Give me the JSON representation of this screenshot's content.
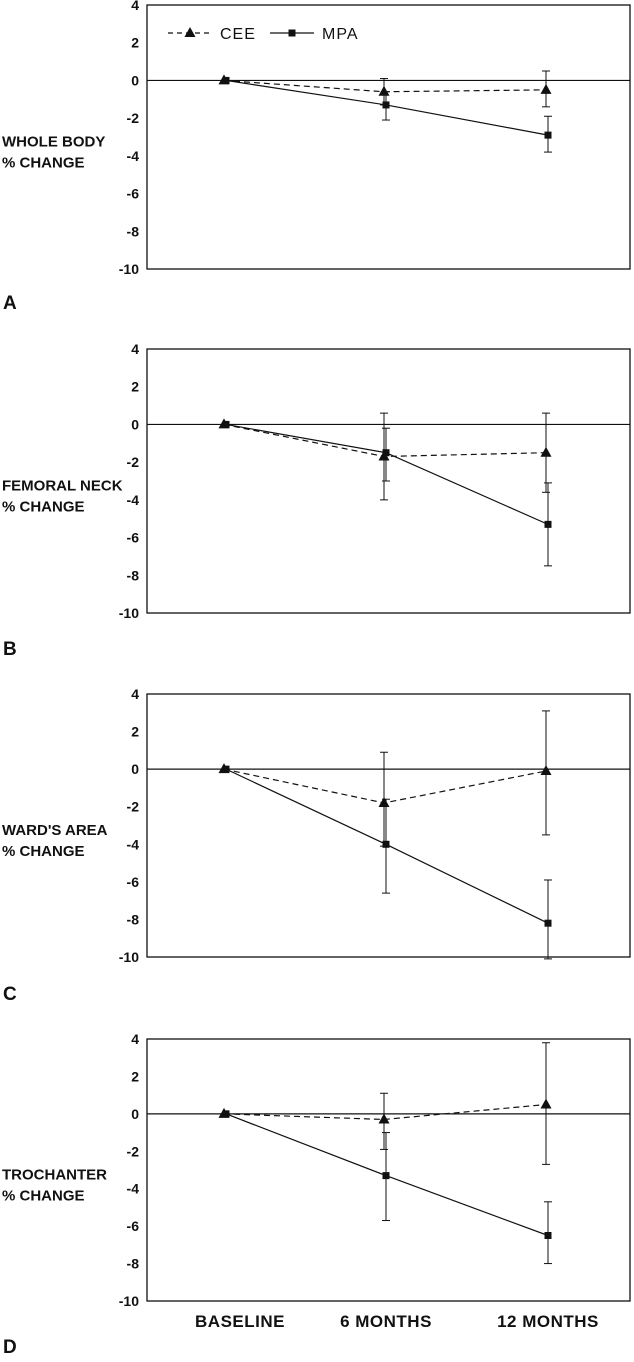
{
  "chart_data": [
    {
      "panel": "A",
      "type": "line",
      "ylabel": [
        "WHOLE BODY",
        "% CHANGE"
      ],
      "ylim": [
        -10,
        4
      ],
      "yticks": [
        4,
        2,
        0,
        -2,
        -4,
        -6,
        -8,
        -10
      ],
      "x": [
        "BASELINE",
        "6 MONTHS",
        "12 MONTHS"
      ],
      "legend": {
        "placement": "top-left",
        "entries": [
          "CEE",
          "MPA"
        ]
      },
      "series": [
        {
          "name": "CEE",
          "marker": "triangle",
          "line": "dashed",
          "values": [
            0,
            -0.6,
            -0.5
          ],
          "err_low": [
            null,
            -1.3,
            -1.4
          ],
          "err_high": [
            null,
            0.1,
            0.5
          ]
        },
        {
          "name": "MPA",
          "marker": "square",
          "line": "solid",
          "values": [
            0,
            -1.3,
            -2.9
          ],
          "err_low": [
            null,
            -2.1,
            -3.8
          ],
          "err_high": [
            null,
            -0.6,
            -1.9
          ]
        }
      ]
    },
    {
      "panel": "B",
      "type": "line",
      "ylabel": [
        "FEMORAL NECK",
        "% CHANGE"
      ],
      "ylim": [
        -10,
        4
      ],
      "yticks": [
        4,
        2,
        0,
        -2,
        -4,
        -6,
        -8,
        -10
      ],
      "x": [
        "BASELINE",
        "6 MONTHS",
        "12 MONTHS"
      ],
      "series": [
        {
          "name": "CEE",
          "marker": "triangle",
          "line": "dashed",
          "values": [
            0,
            -1.7,
            -1.5
          ],
          "err_low": [
            null,
            -4.0,
            -3.6
          ],
          "err_high": [
            null,
            0.6,
            0.6
          ]
        },
        {
          "name": "MPA",
          "marker": "square",
          "line": "solid",
          "values": [
            0,
            -1.5,
            -5.3
          ],
          "err_low": [
            null,
            -3.0,
            -7.5
          ],
          "err_high": [
            null,
            -0.2,
            -3.1
          ]
        }
      ]
    },
    {
      "panel": "C",
      "type": "line",
      "ylabel": [
        "WARD'S AREA",
        "% CHANGE"
      ],
      "ylim": [
        -10,
        4
      ],
      "yticks": [
        4,
        2,
        0,
        -2,
        -4,
        -6,
        -8,
        -10
      ],
      "x": [
        "BASELINE",
        "6 MONTHS",
        "12 MONTHS"
      ],
      "series": [
        {
          "name": "CEE",
          "marker": "triangle",
          "line": "dashed",
          "values": [
            0,
            -1.8,
            -0.1
          ],
          "err_low": [
            null,
            -4.1,
            -3.5
          ],
          "err_high": [
            null,
            0.9,
            3.1
          ]
        },
        {
          "name": "MPA",
          "marker": "square",
          "line": "solid",
          "values": [
            0,
            -4.0,
            -8.2
          ],
          "err_low": [
            null,
            -6.6,
            -10.1
          ],
          "err_high": [
            null,
            -1.6,
            -5.9
          ]
        }
      ]
    },
    {
      "panel": "D",
      "type": "line",
      "ylabel": [
        "TROCHANTER",
        "% CHANGE"
      ],
      "ylim": [
        -10,
        4
      ],
      "yticks": [
        4,
        2,
        0,
        -2,
        -4,
        -6,
        -8,
        -10
      ],
      "x": [
        "BASELINE",
        "6 MONTHS",
        "12 MONTHS"
      ],
      "series": [
        {
          "name": "CEE",
          "marker": "triangle",
          "line": "dashed",
          "values": [
            0,
            -0.3,
            0.5
          ],
          "err_low": [
            null,
            -1.9,
            -2.7
          ],
          "err_high": [
            null,
            1.1,
            3.8
          ]
        },
        {
          "name": "MPA",
          "marker": "square",
          "line": "solid",
          "values": [
            0,
            -3.3,
            -6.5
          ],
          "err_low": [
            null,
            -5.7,
            -8.0
          ],
          "err_high": [
            null,
            -1.0,
            -4.7
          ]
        }
      ]
    }
  ]
}
